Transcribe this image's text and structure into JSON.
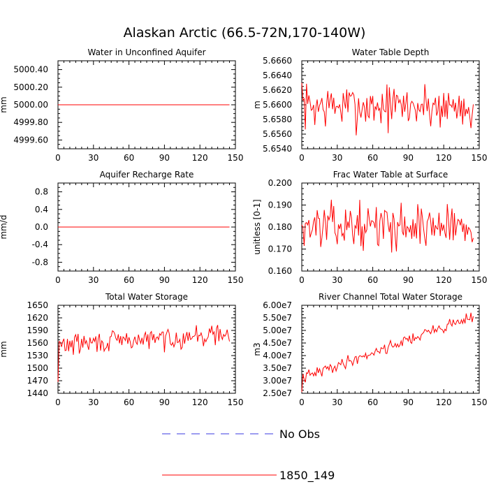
{
  "title": "Alaskan Arctic (66.5-72N,170-140W)",
  "legend": {
    "placement": "bottom-center",
    "items": [
      {
        "label": "No Obs",
        "color": "#3a3ae0",
        "style": "dashed"
      },
      {
        "label": "1850_149",
        "color": "#ff0000",
        "style": "solid"
      }
    ]
  },
  "chart_data": [
    {
      "type": "line",
      "title": "Water in Unconfined Aquifer",
      "ylabel": "mm",
      "xlim": [
        0,
        150
      ],
      "ylim": [
        4999.5,
        5000.5
      ],
      "xticks": [
        0,
        30,
        60,
        90,
        120,
        150
      ],
      "xtick_labels": [
        "0",
        "30",
        "60",
        "90",
        "120",
        "150"
      ],
      "yticks": [
        4999.6,
        4999.8,
        5000.0,
        5000.2,
        5000.4
      ],
      "ytick_labels": [
        "4999.60",
        "4999.80",
        "5000.00",
        "5000.20",
        "5000.40"
      ],
      "series": [
        {
          "color": "#ff0000",
          "constant": 5000.0,
          "x_range": [
            0,
            145
          ]
        }
      ]
    },
    {
      "type": "line",
      "title": "Water Table Depth",
      "ylabel": "m",
      "xlim": [
        0,
        150
      ],
      "ylim": [
        5.654,
        5.666
      ],
      "xticks": [
        0,
        30,
        60,
        90,
        120,
        150
      ],
      "xtick_labels": [
        "0",
        "30",
        "60",
        "90",
        "120",
        "150"
      ],
      "yticks": [
        5.654,
        5.656,
        5.658,
        5.66,
        5.662,
        5.664,
        5.666
      ],
      "ytick_labels": [
        "5.6540",
        "5.6560",
        "5.6580",
        "5.6600",
        "5.6620",
        "5.6640",
        "5.6660"
      ],
      "series": [
        {
          "color": "#ff0000",
          "noise": {
            "base": 5.6598,
            "amp": 0.0027,
            "seed": 7,
            "start": 5.663,
            "min": 5.6545,
            "max": 5.6652
          },
          "x_range": [
            0,
            145
          ]
        }
      ]
    },
    {
      "type": "line",
      "title": "Aquifer Recharge Rate",
      "ylabel": "mm/d",
      "xlim": [
        0,
        150
      ],
      "ylim": [
        -1.0,
        1.0
      ],
      "xticks": [
        0,
        30,
        60,
        90,
        120,
        150
      ],
      "xtick_labels": [
        "0",
        "30",
        "60",
        "90",
        "120",
        "150"
      ],
      "yticks": [
        -0.8,
        -0.4,
        0.0,
        0.4,
        0.8
      ],
      "ytick_labels": [
        "-0.8",
        "-0.4",
        "0.0",
        "0.4",
        "0.8"
      ],
      "series": [
        {
          "color": "#ff0000",
          "constant": 0.0,
          "x_range": [
            0,
            145
          ]
        }
      ]
    },
    {
      "type": "line",
      "title": "Frac Water Table at Surface",
      "ylabel": "unitless [0-1]",
      "xlim": [
        0,
        150
      ],
      "ylim": [
        0.16,
        0.2
      ],
      "xticks": [
        0,
        30,
        60,
        90,
        120,
        150
      ],
      "xtick_labels": [
        "0",
        "30",
        "60",
        "90",
        "120",
        "150"
      ],
      "yticks": [
        0.16,
        0.17,
        0.18,
        0.19,
        0.2
      ],
      "ytick_labels": [
        "0.160",
        "0.170",
        "0.180",
        "0.190",
        "0.200"
      ],
      "series": [
        {
          "color": "#ff0000",
          "noise": {
            "base": 0.1805,
            "amp": 0.0082,
            "seed": 13,
            "start": 0.181,
            "min": 0.162,
            "max": 0.1965
          },
          "x_range": [
            0,
            145
          ]
        }
      ]
    },
    {
      "type": "line",
      "title": "Total Water Storage",
      "ylabel": "mm",
      "xlim": [
        0,
        150
      ],
      "ylim": [
        1440,
        1650
      ],
      "xticks": [
        0,
        30,
        60,
        90,
        120,
        150
      ],
      "xtick_labels": [
        "0",
        "30",
        "60",
        "90",
        "120",
        "150"
      ],
      "yticks": [
        1440,
        1470,
        1500,
        1530,
        1560,
        1590,
        1620,
        1650
      ],
      "ytick_labels": [
        "1440",
        "1470",
        "1500",
        "1530",
        "1560",
        "1590",
        "1620",
        "1650"
      ],
      "series": [
        {
          "color": "#ff0000",
          "noise": {
            "base": 1555,
            "amp": 22,
            "seed": 29,
            "start": 1467,
            "min": 1467,
            "max": 1650,
            "trend": 0.18
          },
          "x_range": [
            0,
            145
          ]
        }
      ]
    },
    {
      "type": "line",
      "title": "River Channel Total Water Storage",
      "ylabel": "m3",
      "xlim": [
        0,
        150
      ],
      "ylim": [
        25000000,
        60000000
      ],
      "xticks": [
        0,
        30,
        60,
        90,
        120,
        150
      ],
      "xtick_labels": [
        "0",
        "30",
        "60",
        "90",
        "120",
        "150"
      ],
      "yticks": [
        25000000,
        30000000,
        35000000,
        40000000,
        45000000,
        50000000,
        55000000,
        60000000
      ],
      "ytick_labels": [
        "2.50e7",
        "3.00e7",
        "3.50e7",
        "4.00e7",
        "4.50e7",
        "5.00e7",
        "5.50e7",
        "6.00e7"
      ],
      "series": [
        {
          "color": "#ff0000",
          "noise": {
            "base": 31000000,
            "amp": 2000000,
            "seed": 41,
            "start": 25500000,
            "min": 25000000,
            "max": 60000000,
            "trend": 170000
          },
          "x_range": [
            0,
            145
          ]
        }
      ]
    }
  ]
}
